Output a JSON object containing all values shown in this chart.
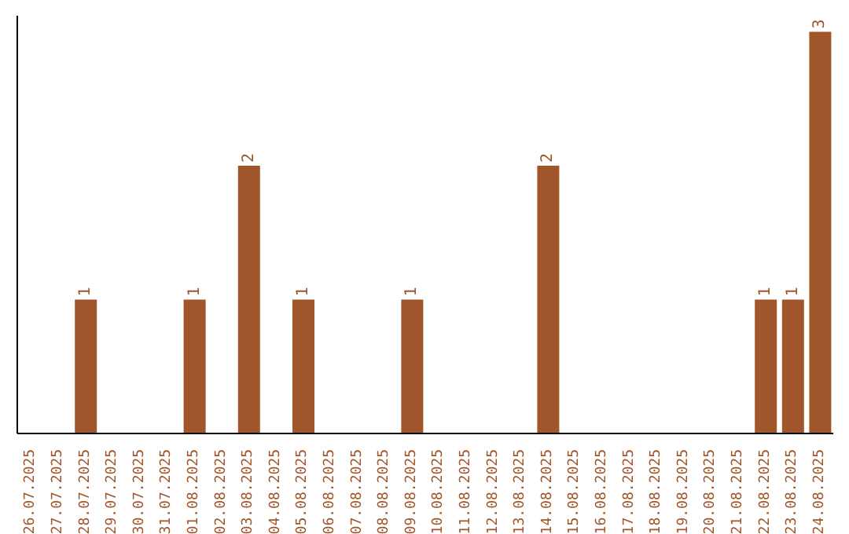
{
  "chart_data": {
    "type": "bar",
    "categories": [
      "26.07.2025",
      "27.07.2025",
      "28.07.2025",
      "29.07.2025",
      "30.07.2025",
      "31.07.2025",
      "01.08.2025",
      "02.08.2025",
      "03.08.2025",
      "04.08.2025",
      "05.08.2025",
      "06.08.2025",
      "07.08.2025",
      "08.08.2025",
      "09.08.2025",
      "10.08.2025",
      "11.08.2025",
      "12.08.2025",
      "13.08.2025",
      "14.08.2025",
      "15.08.2025",
      "16.08.2025",
      "17.08.2025",
      "18.08.2025",
      "19.08.2025",
      "20.08.2025",
      "21.08.2025",
      "22.08.2025",
      "23.08.2025",
      "24.08.2025"
    ],
    "values": [
      0,
      0,
      1,
      0,
      0,
      0,
      1,
      0,
      2,
      0,
      1,
      0,
      0,
      0,
      1,
      0,
      0,
      0,
      0,
      2,
      0,
      0,
      0,
      0,
      0,
      0,
      0,
      1,
      1,
      3
    ],
    "value_labels": [
      null,
      null,
      "1",
      null,
      null,
      null,
      "1",
      null,
      "2",
      null,
      "1",
      null,
      null,
      null,
      "1",
      null,
      null,
      null,
      null,
      "2",
      null,
      null,
      null,
      null,
      null,
      null,
      null,
      "1",
      "1",
      "3"
    ],
    "color": "#a0562a",
    "grid": false,
    "legend": false
  }
}
